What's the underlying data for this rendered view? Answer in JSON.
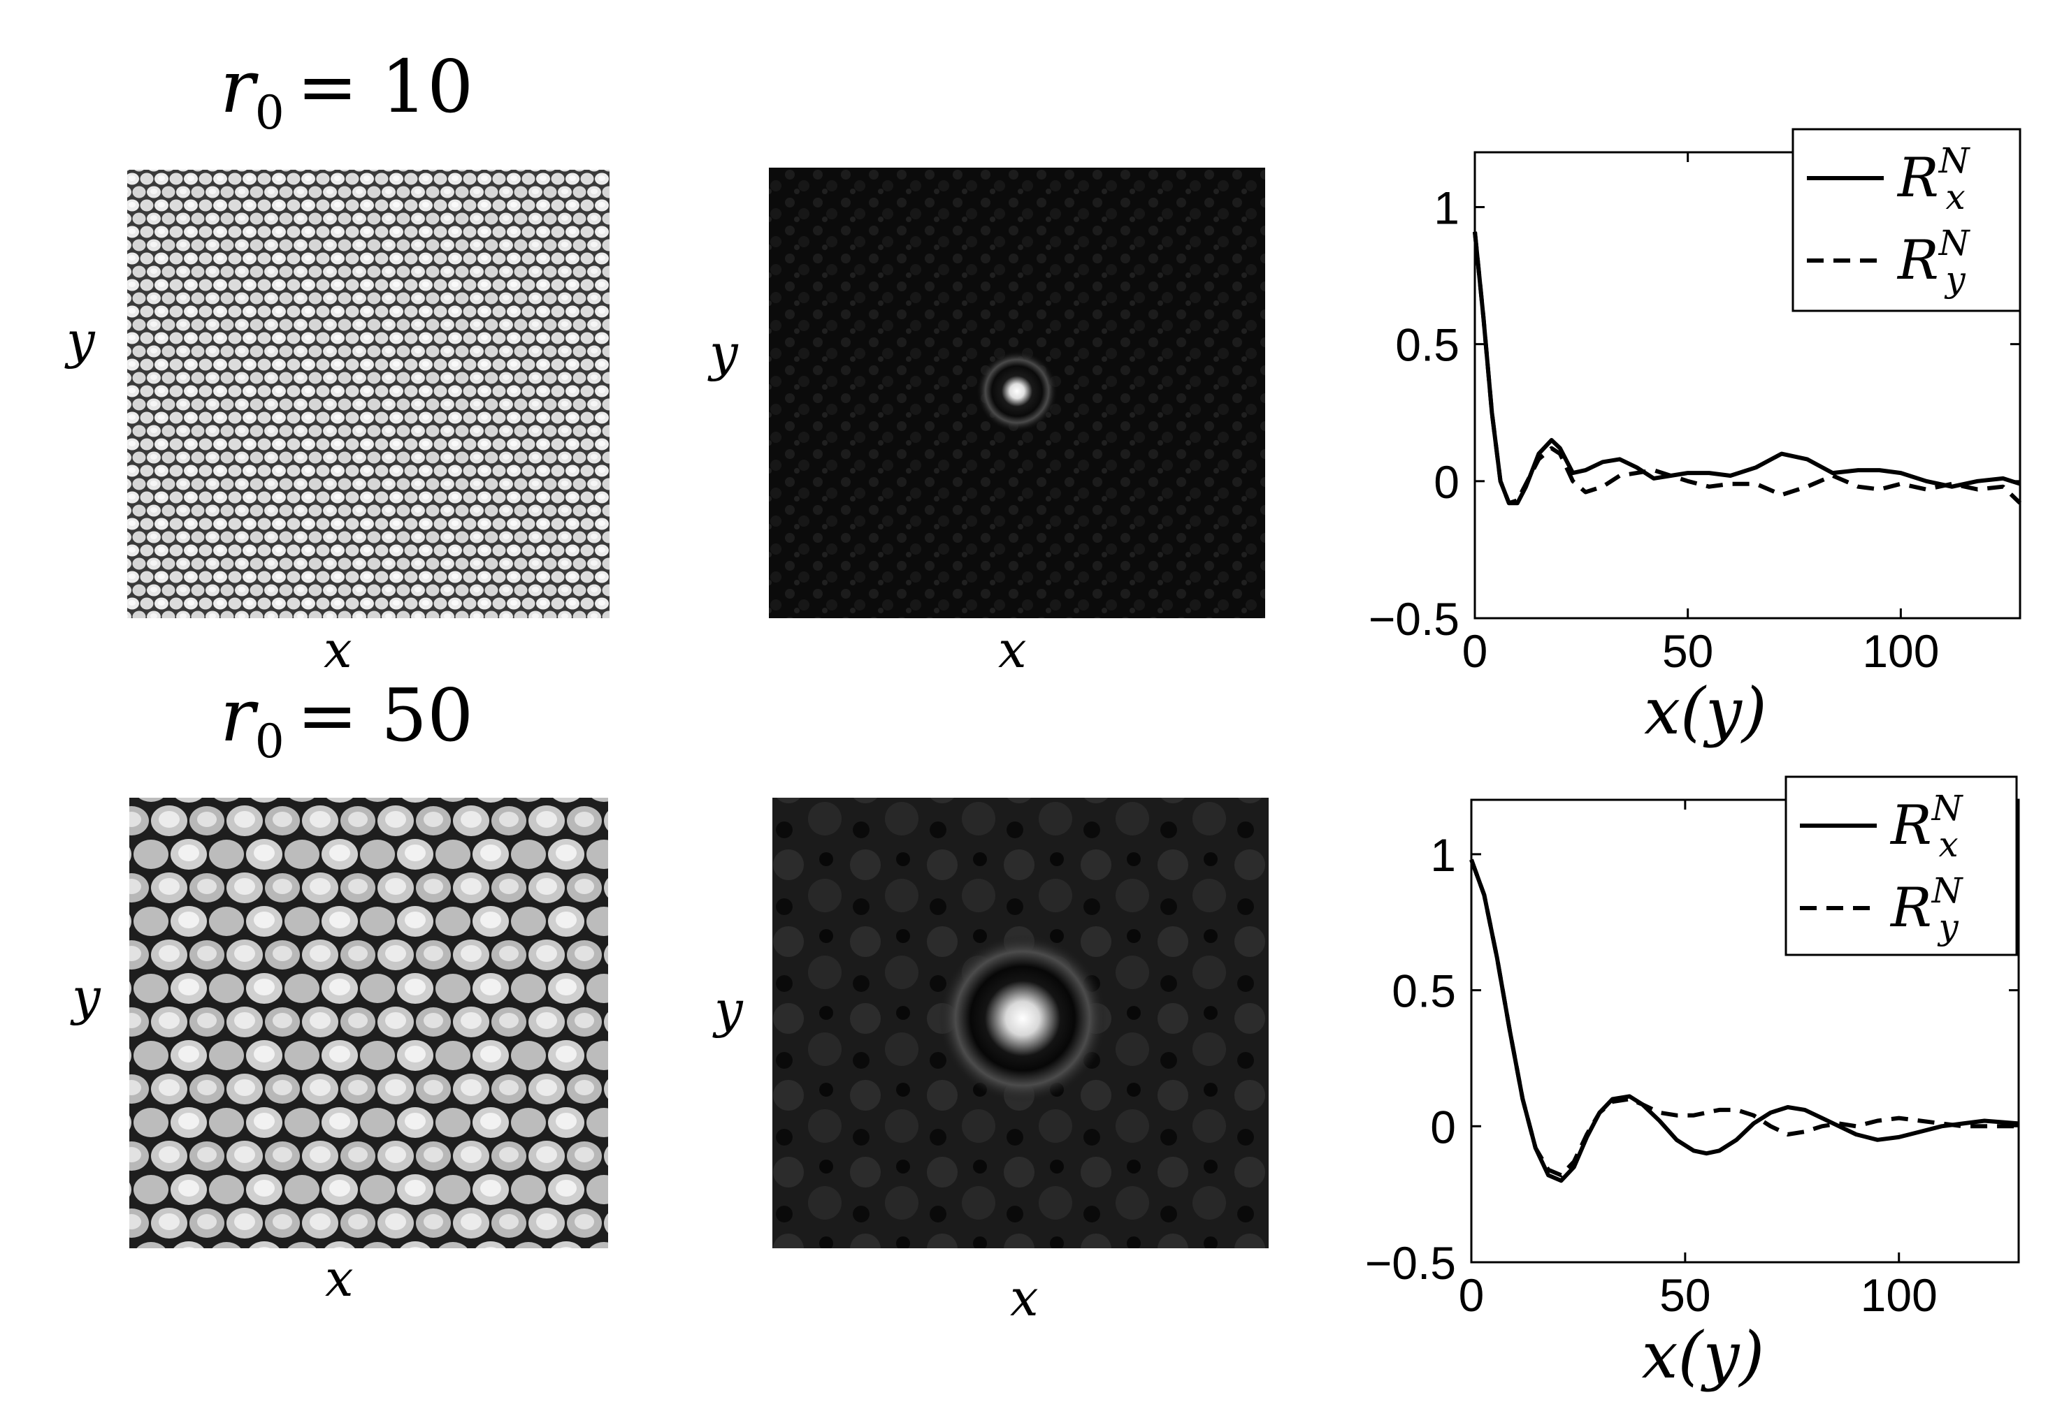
{
  "rows": [
    {
      "title": {
        "symbol": "r",
        "sub": "0",
        "eq": "= 10"
      },
      "map_xlabel": "x",
      "map_ylabel": "y",
      "corr_xlabel": "x",
      "corr_ylabel": "y"
    },
    {
      "title": {
        "symbol": "r",
        "sub": "0",
        "eq": "= 50"
      },
      "map_xlabel": "x",
      "map_ylabel": "y",
      "corr_xlabel": "x",
      "corr_ylabel": "y"
    }
  ],
  "chart_data": [
    {
      "type": "line",
      "xlabel": "x(y)",
      "ylabel": "",
      "xlim": [
        0,
        128
      ],
      "ylim": [
        -0.5,
        1.2
      ],
      "xticks": [
        0,
        50,
        100
      ],
      "yticks": [
        -0.5,
        0,
        0.5,
        1
      ],
      "xtick_labels": [
        "0",
        "50",
        "100"
      ],
      "ytick_labels": [
        "−0.5",
        "0",
        "0.5",
        "1"
      ],
      "legend_placement": "top-right",
      "series": [
        {
          "name": "R_x^N",
          "style": "solid",
          "x": [
            0,
            2,
            4,
            6,
            8,
            10,
            12,
            15,
            18,
            20,
            23,
            26,
            30,
            34,
            38,
            42,
            46,
            50,
            55,
            60,
            66,
            72,
            78,
            84,
            90,
            95,
            100,
            106,
            112,
            118,
            124,
            128
          ],
          "y": [
            0.91,
            0.6,
            0.25,
            0.0,
            -0.08,
            -0.08,
            -0.02,
            0.1,
            0.15,
            0.12,
            0.03,
            0.04,
            0.07,
            0.08,
            0.05,
            0.01,
            0.02,
            0.03,
            0.03,
            0.02,
            0.05,
            0.1,
            0.08,
            0.03,
            0.04,
            0.04,
            0.03,
            0.0,
            -0.02,
            0.0,
            0.01,
            -0.01
          ]
        },
        {
          "name": "R_y^N",
          "style": "dashed",
          "x": [
            0,
            2,
            4,
            6,
            8,
            10,
            12,
            15,
            18,
            20,
            23,
            26,
            30,
            34,
            38,
            42,
            46,
            50,
            55,
            60,
            66,
            72,
            78,
            84,
            90,
            95,
            100,
            106,
            112,
            118,
            124,
            128
          ],
          "y": [
            0.91,
            0.6,
            0.25,
            0.0,
            -0.08,
            -0.07,
            -0.01,
            0.08,
            0.12,
            0.1,
            0.0,
            -0.04,
            -0.02,
            0.02,
            0.03,
            0.04,
            0.02,
            0.0,
            -0.02,
            -0.01,
            -0.01,
            -0.05,
            -0.02,
            0.02,
            -0.02,
            -0.03,
            -0.01,
            -0.03,
            -0.01,
            -0.03,
            -0.02,
            -0.08
          ]
        }
      ]
    },
    {
      "type": "line",
      "xlabel": "x(y)",
      "ylabel": "",
      "xlim": [
        0,
        128
      ],
      "ylim": [
        -0.5,
        1.2
      ],
      "xticks": [
        0,
        50,
        100
      ],
      "yticks": [
        -0.5,
        0,
        0.5,
        1
      ],
      "xtick_labels": [
        "0",
        "50",
        "100"
      ],
      "ytick_labels": [
        "−0.5",
        "0",
        "0.5",
        "1"
      ],
      "legend_placement": "top-right",
      "series": [
        {
          "name": "R_x^N",
          "style": "solid",
          "x": [
            0,
            3,
            6,
            9,
            12,
            15,
            18,
            21,
            24,
            27,
            30,
            33,
            37,
            40,
            44,
            48,
            52,
            55,
            58,
            62,
            66,
            70,
            74,
            78,
            82,
            86,
            90,
            95,
            100,
            105,
            110,
            115,
            120,
            128
          ],
          "y": [
            0.98,
            0.85,
            0.62,
            0.35,
            0.1,
            -0.08,
            -0.18,
            -0.2,
            -0.15,
            -0.04,
            0.05,
            0.1,
            0.11,
            0.08,
            0.02,
            -0.05,
            -0.09,
            -0.1,
            -0.09,
            -0.05,
            0.01,
            0.05,
            0.07,
            0.06,
            0.03,
            0.0,
            -0.03,
            -0.05,
            -0.04,
            -0.02,
            0.0,
            0.01,
            0.02,
            0.01
          ]
        },
        {
          "name": "R_y^N",
          "style": "dashed",
          "x": [
            0,
            3,
            6,
            9,
            12,
            15,
            18,
            21,
            24,
            27,
            30,
            33,
            37,
            40,
            44,
            48,
            52,
            55,
            58,
            62,
            66,
            70,
            74,
            78,
            82,
            86,
            90,
            95,
            100,
            105,
            110,
            115,
            120,
            128
          ],
          "y": [
            0.98,
            0.85,
            0.62,
            0.35,
            0.1,
            -0.08,
            -0.16,
            -0.18,
            -0.13,
            -0.03,
            0.05,
            0.09,
            0.1,
            0.08,
            0.05,
            0.04,
            0.04,
            0.05,
            0.06,
            0.06,
            0.04,
            0.0,
            -0.03,
            -0.02,
            0.0,
            0.01,
            0.0,
            0.02,
            0.03,
            0.02,
            0.01,
            0.0,
            0.0,
            0.0
          ]
        }
      ]
    }
  ]
}
